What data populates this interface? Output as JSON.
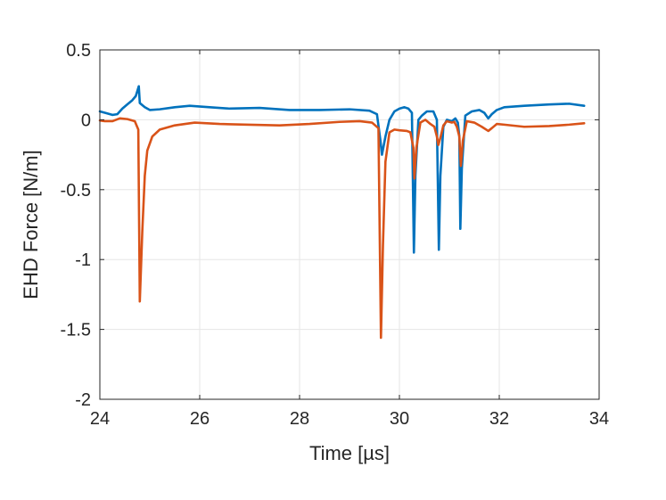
{
  "chart_data": {
    "type": "line",
    "title": "",
    "xlabel": "Time [µs]",
    "ylabel": "EHD Force [N/m]",
    "xlim": [
      24,
      34
    ],
    "ylim": [
      -2,
      0.5
    ],
    "xticks": [
      24,
      26,
      28,
      30,
      32,
      34
    ],
    "xtick_labels": [
      "24",
      "26",
      "28",
      "30",
      "32",
      "34"
    ],
    "yticks": [
      -2,
      -1.5,
      -1,
      -0.5,
      0,
      0.5
    ],
    "ytick_labels": [
      "-2",
      "-1.5",
      "-1",
      "-0.5",
      "0",
      "0.5"
    ],
    "grid": true,
    "legend": "none",
    "series": [
      {
        "color": "#0072BD",
        "points": [
          [
            24.0,
            0.06
          ],
          [
            24.1,
            0.05
          ],
          [
            24.25,
            0.035
          ],
          [
            24.35,
            0.04
          ],
          [
            24.45,
            0.08
          ],
          [
            24.55,
            0.11
          ],
          [
            24.65,
            0.14
          ],
          [
            24.72,
            0.17
          ],
          [
            24.78,
            0.24
          ],
          [
            24.8,
            0.12
          ],
          [
            24.9,
            0.09
          ],
          [
            25.0,
            0.07
          ],
          [
            25.2,
            0.075
          ],
          [
            25.5,
            0.09
          ],
          [
            25.8,
            0.1
          ],
          [
            26.2,
            0.09
          ],
          [
            26.6,
            0.08
          ],
          [
            27.2,
            0.085
          ],
          [
            27.8,
            0.07
          ],
          [
            28.4,
            0.07
          ],
          [
            29.0,
            0.075
          ],
          [
            29.4,
            0.065
          ],
          [
            29.55,
            0.04
          ],
          [
            29.62,
            -0.15
          ],
          [
            29.65,
            -0.25
          ],
          [
            29.72,
            -0.12
          ],
          [
            29.8,
            0.0
          ],
          [
            29.9,
            0.06
          ],
          [
            30.0,
            0.08
          ],
          [
            30.1,
            0.09
          ],
          [
            30.18,
            0.08
          ],
          [
            30.25,
            0.05
          ],
          [
            30.29,
            -0.95
          ],
          [
            30.32,
            -0.4
          ],
          [
            30.38,
            0.0
          ],
          [
            30.45,
            0.03
          ],
          [
            30.55,
            0.06
          ],
          [
            30.68,
            0.06
          ],
          [
            30.75,
            0.0
          ],
          [
            30.79,
            -0.93
          ],
          [
            30.82,
            -0.4
          ],
          [
            30.88,
            -0.05
          ],
          [
            30.95,
            0.0
          ],
          [
            31.05,
            -0.01
          ],
          [
            31.12,
            0.01
          ],
          [
            31.17,
            -0.02
          ],
          [
            31.2,
            -0.12
          ],
          [
            31.22,
            -0.78
          ],
          [
            31.25,
            -0.35
          ],
          [
            31.32,
            0.03
          ],
          [
            31.45,
            0.06
          ],
          [
            31.6,
            0.07
          ],
          [
            31.7,
            0.05
          ],
          [
            31.78,
            0.01
          ],
          [
            31.85,
            0.04
          ],
          [
            31.95,
            0.07
          ],
          [
            32.1,
            0.09
          ],
          [
            32.5,
            0.1
          ],
          [
            33.0,
            0.11
          ],
          [
            33.4,
            0.115
          ],
          [
            33.7,
            0.1
          ]
        ]
      },
      {
        "color": "#D95319",
        "points": [
          [
            24.0,
            -0.005
          ],
          [
            24.1,
            -0.01
          ],
          [
            24.25,
            -0.01
          ],
          [
            24.4,
            0.01
          ],
          [
            24.55,
            0.005
          ],
          [
            24.7,
            -0.01
          ],
          [
            24.77,
            -0.07
          ],
          [
            24.8,
            -1.3
          ],
          [
            24.85,
            -0.8
          ],
          [
            24.9,
            -0.4
          ],
          [
            24.95,
            -0.22
          ],
          [
            25.05,
            -0.12
          ],
          [
            25.2,
            -0.07
          ],
          [
            25.5,
            -0.04
          ],
          [
            25.9,
            -0.02
          ],
          [
            26.4,
            -0.03
          ],
          [
            27.0,
            -0.035
          ],
          [
            27.6,
            -0.04
          ],
          [
            28.2,
            -0.03
          ],
          [
            28.8,
            -0.015
          ],
          [
            29.2,
            -0.01
          ],
          [
            29.45,
            -0.02
          ],
          [
            29.58,
            -0.06
          ],
          [
            29.63,
            -1.56
          ],
          [
            29.67,
            -0.9
          ],
          [
            29.72,
            -0.3
          ],
          [
            29.8,
            -0.09
          ],
          [
            29.9,
            -0.07
          ],
          [
            30.0,
            -0.075
          ],
          [
            30.15,
            -0.08
          ],
          [
            30.22,
            -0.09
          ],
          [
            30.28,
            -0.2
          ],
          [
            30.3,
            -0.42
          ],
          [
            30.34,
            -0.2
          ],
          [
            30.42,
            -0.02
          ],
          [
            30.52,
            0.0
          ],
          [
            30.62,
            -0.03
          ],
          [
            30.7,
            -0.05
          ],
          [
            30.75,
            -0.12
          ],
          [
            30.78,
            -0.18
          ],
          [
            30.82,
            -0.13
          ],
          [
            30.88,
            -0.04
          ],
          [
            30.95,
            -0.01
          ],
          [
            31.05,
            -0.02
          ],
          [
            31.1,
            -0.015
          ],
          [
            31.15,
            -0.05
          ],
          [
            31.2,
            -0.12
          ],
          [
            31.23,
            -0.33
          ],
          [
            31.27,
            -0.15
          ],
          [
            31.35,
            -0.01
          ],
          [
            31.5,
            -0.02
          ],
          [
            31.65,
            -0.05
          ],
          [
            31.78,
            -0.08
          ],
          [
            31.85,
            -0.06
          ],
          [
            31.95,
            -0.03
          ],
          [
            32.1,
            -0.035
          ],
          [
            32.5,
            -0.05
          ],
          [
            33.0,
            -0.045
          ],
          [
            33.4,
            -0.035
          ],
          [
            33.7,
            -0.025
          ]
        ]
      }
    ]
  }
}
